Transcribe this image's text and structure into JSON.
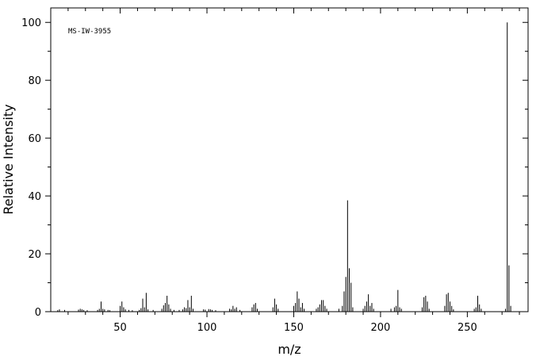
{
  "chart_data": {
    "type": "stem",
    "annotation": "MS-IW-3955",
    "xlabel": "m/z",
    "ylabel": "Relative Intensity",
    "color": "#000000",
    "xlim": [
      10,
      285
    ],
    "ylim": [
      0,
      105
    ],
    "xticks": [
      50,
      100,
      150,
      200,
      250
    ],
    "yticks": [
      0,
      20,
      40,
      60,
      80,
      100
    ],
    "minor_xticks": [
      20,
      30,
      40,
      60,
      70,
      80,
      90,
      110,
      120,
      130,
      140,
      160,
      170,
      180,
      190,
      210,
      220,
      230,
      240,
      260,
      270,
      280
    ],
    "minor_yticks": [
      10,
      30,
      50,
      70,
      90
    ],
    "x": [
      14,
      15,
      18,
      26,
      27,
      28,
      29,
      31,
      37,
      38,
      39,
      40,
      41,
      43,
      44,
      50,
      51,
      52,
      53,
      55,
      57,
      61,
      62,
      63,
      64,
      65,
      66,
      69,
      74,
      75,
      76,
      77,
      78,
      79,
      81,
      84,
      86,
      87,
      88,
      89,
      90,
      91,
      92,
      98,
      99,
      101,
      102,
      103,
      105,
      113,
      114,
      115,
      116,
      117,
      119,
      126,
      127,
      128,
      129,
      138,
      139,
      140,
      141,
      150,
      151,
      152,
      153,
      154,
      155,
      156,
      163,
      164,
      165,
      166,
      167,
      168,
      169,
      176,
      178,
      179,
      180,
      181,
      182,
      183,
      184,
      190,
      191,
      192,
      193,
      194,
      195,
      196,
      206,
      208,
      209,
      210,
      211,
      212,
      224,
      225,
      226,
      227,
      228,
      237,
      238,
      239,
      240,
      241,
      242,
      254,
      255,
      256,
      257,
      258,
      272,
      273,
      274,
      275
    ],
    "values": [
      0.5,
      0.8,
      0.6,
      0.7,
      1,
      0.8,
      0.6,
      0.5,
      0.6,
      1,
      3.5,
      1,
      0.8,
      0.6,
      0.5,
      2,
      3.5,
      1.5,
      0.8,
      0.6,
      0.5,
      0.6,
      1.2,
      4.5,
      1.5,
      6.5,
      0.8,
      0.6,
      1,
      2.2,
      3,
      5.5,
      2.5,
      1,
      0.6,
      0.6,
      0.8,
      1.5,
      1.2,
      4,
      1.5,
      5.5,
      1,
      0.8,
      0.7,
      0.9,
      0.8,
      0.6,
      0.5,
      1,
      0.8,
      2,
      1,
      1.5,
      0.6,
      1.5,
      2.5,
      3,
      1,
      1.5,
      4.5,
      2.5,
      1,
      2,
      3,
      7,
      4.5,
      1.5,
      3,
      1,
      1,
      1.5,
      2.5,
      4,
      4,
      2,
      1,
      1,
      2,
      7,
      12,
      38.5,
      15,
      10,
      1.5,
      1,
      2,
      3.5,
      6,
      2,
      3,
      1,
      1,
      1.5,
      2,
      7.5,
      1.5,
      1,
      1.5,
      5,
      5.5,
      3.5,
      1,
      2,
      6,
      6.5,
      3.5,
      2,
      0.8,
      1,
      1.5,
      5.5,
      2.5,
      1,
      1,
      100,
      16,
      2
    ]
  }
}
